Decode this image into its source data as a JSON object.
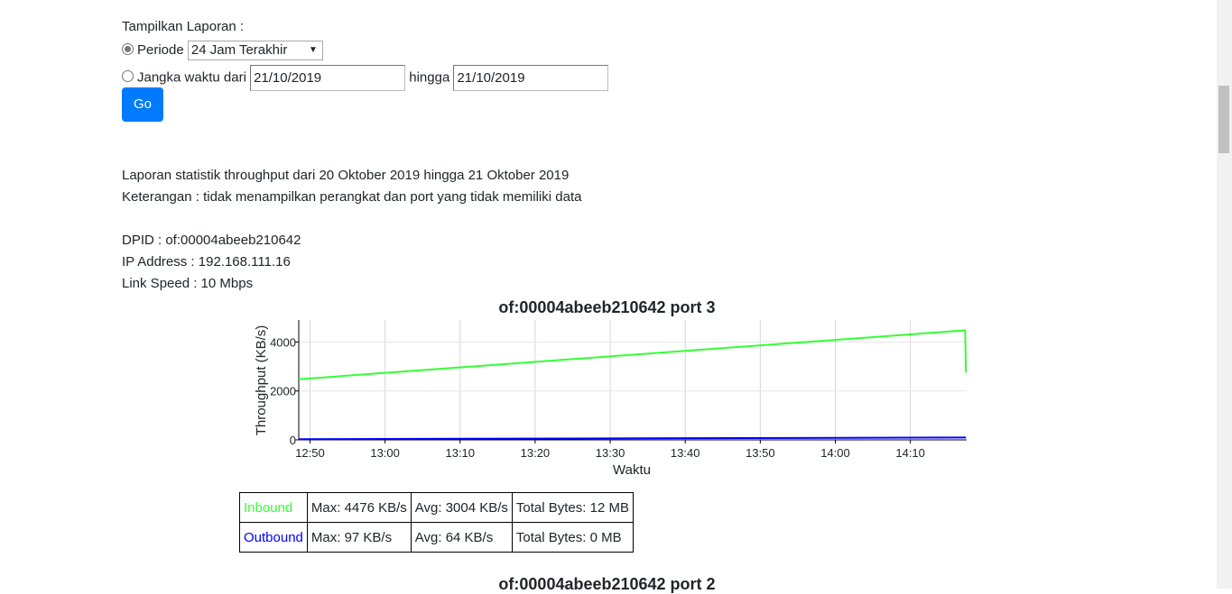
{
  "form": {
    "label": "Tampilkan Laporan :",
    "periode_label": "Periode",
    "periode_value": "24 Jam Terakhir",
    "jangka_label": "Jangka waktu dari",
    "from_value": "21/10/2019",
    "hingga_label": "hingga",
    "to_value": "21/10/2019",
    "go_label": "Go"
  },
  "report": {
    "summary": "Laporan statistik throughput dari 20 Oktober 2019 hingga 21 Oktober 2019",
    "note": "Keterangan : tidak menampilkan perangkat dan port yang tidak memiliki data",
    "dpid": "DPID : of:00004abeeb210642",
    "ip": "IP Address : 192.168.111.16",
    "link_speed": "Link Speed : 10 Mbps"
  },
  "chart_data": {
    "type": "line",
    "title": "of:00004abeeb210642 port 3",
    "xlabel": "Waktu",
    "ylabel": "Throughput (KB/s)",
    "x_ticks": [
      "12:50",
      "13:00",
      "13:10",
      "13:20",
      "13:30",
      "13:40",
      "13:50",
      "14:00",
      "14:10"
    ],
    "y_ticks": [
      0,
      2000,
      4000
    ],
    "ylim": [
      0,
      4900
    ],
    "xlim_minutes_from_1250": [
      -1.5,
      87.5
    ],
    "grid": true,
    "series": [
      {
        "name": "Inbound",
        "color": "#33ff33",
        "points": [
          [
            -1.5,
            2480
          ],
          [
            87.3,
            4476
          ],
          [
            87.4,
            2750
          ]
        ]
      },
      {
        "name": "Outbound",
        "color": "#0000ff",
        "points": [
          [
            -1.5,
            30
          ],
          [
            87.4,
            97
          ]
        ]
      }
    ]
  },
  "stats": {
    "rows": [
      {
        "name": "Inbound",
        "color": "#33ff33",
        "max": "Max: 4476 KB/s",
        "avg": "Avg: 3004 KB/s",
        "total": "Total Bytes: 12 MB"
      },
      {
        "name": "Outbound",
        "color": "#0000ff",
        "max": "Max: 97 KB/s",
        "avg": "Avg: 64 KB/s",
        "total": "Total Bytes: 0 MB"
      }
    ]
  },
  "next_chart_title": "of:00004abeeb210642 port 2"
}
